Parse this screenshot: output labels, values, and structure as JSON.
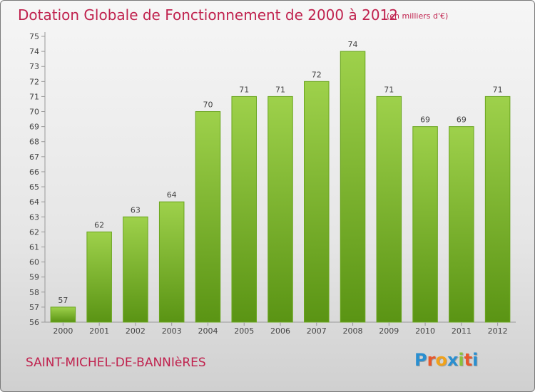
{
  "header": {
    "title": "Dotation Globale de Fonctionnement de 2000 à 2012",
    "subtitle": "(en milliers d'€)"
  },
  "commune": "SAINT-MICHEL-DE-BANNIèRES",
  "logo": {
    "text": "Proxiti",
    "colors": [
      "#2a8fd0",
      "#e8572b",
      "#f1a21a",
      "#2a8fd0",
      "#8ac23a",
      "#e8572b",
      "#2a8fd0"
    ]
  },
  "colors": {
    "title": "#c0224e",
    "bar_top": "#9ed14b",
    "bar_bottom": "#5a9414",
    "bar_border": "#6aa51f"
  },
  "chart_data": {
    "type": "bar",
    "title": "Dotation Globale de Fonctionnement de 2000 à 2012",
    "subtitle": "(en milliers d'€)",
    "categories": [
      "2000",
      "2001",
      "2002",
      "2003",
      "2004",
      "2005",
      "2006",
      "2007",
      "2008",
      "2009",
      "2010",
      "2011",
      "2012"
    ],
    "values": [
      57,
      62,
      63,
      64,
      70,
      71,
      71,
      72,
      74,
      71,
      69,
      69,
      71
    ],
    "ylim": [
      56,
      75
    ],
    "yticks": [
      56,
      57,
      58,
      59,
      60,
      61,
      62,
      63,
      64,
      65,
      66,
      67,
      68,
      69,
      70,
      71,
      72,
      73,
      74,
      75
    ],
    "xlabel": "",
    "ylabel": "",
    "grid": false,
    "data_labels": true
  }
}
